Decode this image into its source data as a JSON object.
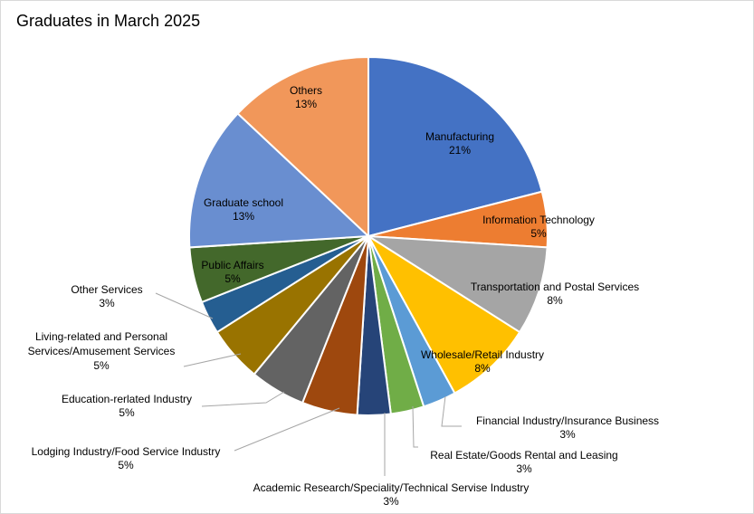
{
  "chart_data": {
    "type": "pie",
    "title": "Graduates in March 2025",
    "slices": [
      {
        "label": "Manufacturing",
        "value": 21,
        "value_label": "21%",
        "color": "#4472C4"
      },
      {
        "label": "Information Technology",
        "value": 5,
        "value_label": "5%",
        "color": "#ED7D31"
      },
      {
        "label": "Transportation and Postal Services",
        "value": 8,
        "value_label": "8%",
        "color": "#A5A5A5"
      },
      {
        "label": "Wholesale/Retail Industry",
        "value": 8,
        "value_label": "8%",
        "color": "#FFC000"
      },
      {
        "label": "Financial Industry/Insurance Business",
        "value": 3,
        "value_label": "3%",
        "color": "#5B9BD5"
      },
      {
        "label": "Real Estate/Goods Rental and Leasing",
        "value": 3,
        "value_label": "3%",
        "color": "#70AD47"
      },
      {
        "label": "Academic Research/Speciality/Technical Servise Industry",
        "value": 3,
        "value_label": "3%",
        "color": "#264478"
      },
      {
        "label": "Lodging Industry/Food Service Industry",
        "value": 5,
        "value_label": "5%",
        "color": "#9E480E"
      },
      {
        "label": "Education-rerlated Industry",
        "value": 5,
        "value_label": "5%",
        "color": "#636363"
      },
      {
        "label": "Living-related and Personal Services/Amusement Services",
        "value": 5,
        "value_label": "5%",
        "color": "#997300"
      },
      {
        "label": "Other Services",
        "value": 3,
        "value_label": "3%",
        "color": "#255E91"
      },
      {
        "label": "Public Affairs",
        "value": 5,
        "value_label": "5%",
        "color": "#43682B"
      },
      {
        "label": "Graduate school",
        "value": 13,
        "value_label": "13%",
        "color": "#698ED0"
      },
      {
        "label": "Others",
        "value": 13,
        "value_label": "13%",
        "color": "#F1975A"
      }
    ],
    "data_labels": "category name and percentage",
    "legend": "none"
  }
}
